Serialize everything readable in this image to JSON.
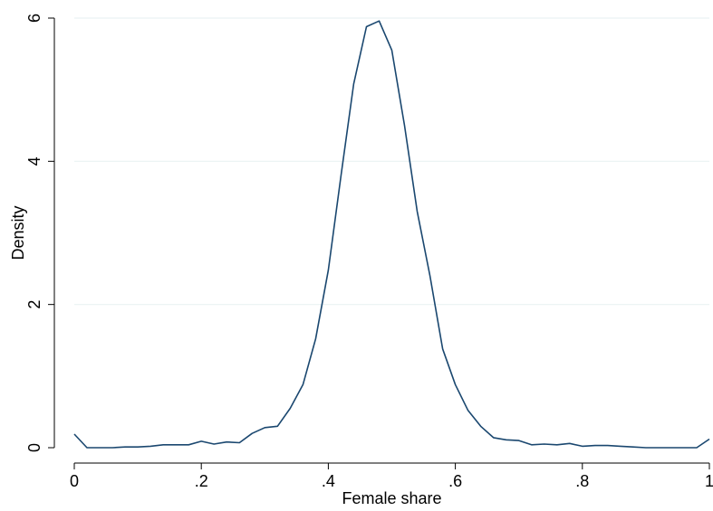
{
  "chart_data": {
    "type": "line",
    "title": "",
    "xlabel": "Female share",
    "ylabel": "Density",
    "xlim": [
      0,
      1
    ],
    "ylim": [
      0,
      6
    ],
    "xticks": [
      0,
      0.2,
      0.4,
      0.6,
      0.8,
      1
    ],
    "xtick_labels": [
      "0",
      ".2",
      ".4",
      ".6",
      ".8",
      "1"
    ],
    "yticks": [
      0,
      2,
      4,
      6
    ],
    "ytick_labels": [
      "0",
      "2",
      "4",
      "6"
    ],
    "grid": "horizontal",
    "legend": "none",
    "colors": {
      "line": "#1a476f",
      "grid": "#eaf2f3",
      "axis": "#000000",
      "background": "#ffffff"
    },
    "series": [
      {
        "x": [
          0.0,
          0.02,
          0.04,
          0.06,
          0.08,
          0.1,
          0.12,
          0.14,
          0.16,
          0.18,
          0.2,
          0.22,
          0.24,
          0.26,
          0.28,
          0.3,
          0.32,
          0.34,
          0.36,
          0.38,
          0.4,
          0.42,
          0.44,
          0.46,
          0.48,
          0.5,
          0.52,
          0.54,
          0.56,
          0.58,
          0.6,
          0.62,
          0.64,
          0.66,
          0.68,
          0.7,
          0.72,
          0.74,
          0.76,
          0.78,
          0.8,
          0.82,
          0.84,
          0.86,
          0.88,
          0.9,
          0.92,
          0.94,
          0.96,
          0.98,
          1.0
        ],
        "values": [
          0.19,
          0.0,
          0.0,
          0.0,
          0.01,
          0.01,
          0.02,
          0.04,
          0.04,
          0.04,
          0.09,
          0.05,
          0.08,
          0.07,
          0.2,
          0.28,
          0.3,
          0.55,
          0.88,
          1.52,
          2.48,
          3.8,
          5.08,
          5.88,
          5.96,
          5.55,
          4.5,
          3.3,
          2.4,
          1.38,
          0.88,
          0.52,
          0.3,
          0.14,
          0.11,
          0.1,
          0.04,
          0.05,
          0.04,
          0.06,
          0.02,
          0.03,
          0.03,
          0.02,
          0.01,
          0.0,
          0.0,
          0.0,
          0.0,
          0.0,
          0.12
        ]
      }
    ]
  }
}
